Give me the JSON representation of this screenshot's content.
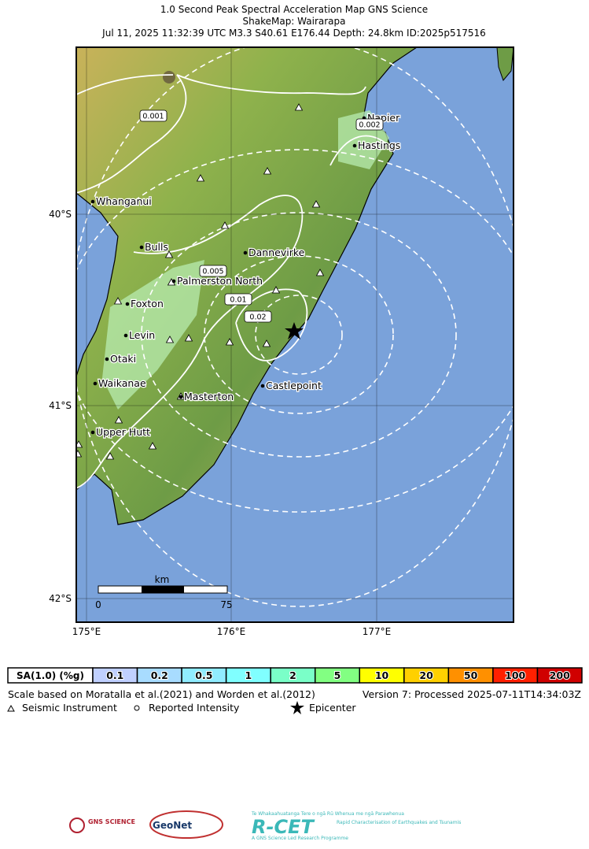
{
  "header": {
    "title": "1.0 Second Peak Spectral Acceleration Map GNS Science",
    "subtitle": "ShakeMap: Wairarapa",
    "event": "Jul 11, 2025 11:32:39 UTC M3.3 S40.61 E176.44 Depth: 24.8km ID:2025p517516"
  },
  "map": {
    "cities": [
      "Napier",
      "Hastings",
      "Whanganui",
      "Bulls",
      "Dannevirke",
      "Palmerston North",
      "Foxton",
      "Levin",
      "Otaki",
      "Waikanae",
      "Masterton",
      "Castlepoint",
      "Upper Hutt"
    ],
    "contour_labels": [
      "0.001",
      "0.002",
      "0.005",
      "0.01",
      "0.02"
    ],
    "lat_labels": [
      "40°S",
      "41°S",
      "42°S"
    ],
    "lon_labels": [
      "175°E",
      "176°E",
      "177°E"
    ],
    "scale_bar": {
      "unit": "km",
      "labels": [
        "0",
        "75"
      ]
    }
  },
  "legend": {
    "title": "SA(1.0) (%g)",
    "items": [
      {
        "label": "0.1",
        "color": "#c0d0ff"
      },
      {
        "label": "0.2",
        "color": "#a8dcff"
      },
      {
        "label": "0.5",
        "color": "#90ecff"
      },
      {
        "label": "1",
        "color": "#80ffff"
      },
      {
        "label": "2",
        "color": "#7affc8"
      },
      {
        "label": "5",
        "color": "#82ff82"
      },
      {
        "label": "10",
        "color": "#ffff00"
      },
      {
        "label": "20",
        "color": "#ffd000"
      },
      {
        "label": "50",
        "color": "#ff9000"
      },
      {
        "label": "100",
        "color": "#ff2000"
      },
      {
        "label": "200",
        "color": "#d00000"
      }
    ]
  },
  "notes": {
    "scale": "Scale based on Moratalla et al.(2021) and Worden et al.(2012)",
    "version": "Version 7: Processed 2025-07-11T14:34:03Z",
    "symbols": [
      "Seismic Instrument",
      "Reported Intensity",
      "Epicenter"
    ]
  },
  "logos": {
    "gns": "GNS SCIENCE",
    "geonet": "GeoNet",
    "rcet": "R-CET",
    "rcet_maori": "Te Whakaahuatanga Tere o ngā Rū Whenua me ngā Parawhenua",
    "rcet_sub": "Rapid Characterisation of Earthquakes and Tsunamis",
    "rcet_foot": "A GNS Science Led Research Programme"
  }
}
